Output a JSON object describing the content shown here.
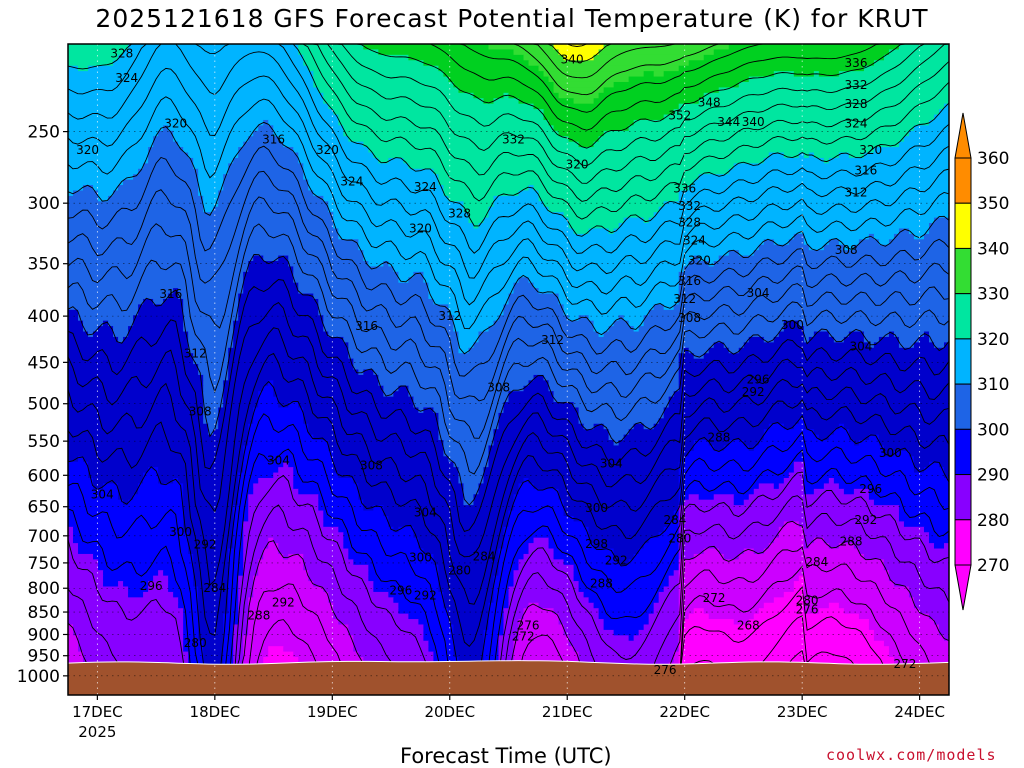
{
  "page": {
    "title": "2025121618 GFS Forecast Potential Temperature (K) for KRUT",
    "credit": "coolwx.com/models"
  },
  "chart_data": {
    "type": "heatmap",
    "title": "2025121618 GFS Forecast Potential Temperature (K) for KRUT",
    "xlabel": "Forecast Time (UTC)",
    "ylabel": "",
    "y_scale": "log",
    "y_inverted": true,
    "ylim": [
      1050,
      200
    ],
    "y_ticks": [
      250,
      300,
      350,
      400,
      450,
      500,
      550,
      600,
      650,
      700,
      750,
      800,
      850,
      900,
      950,
      1000
    ],
    "x_ticks": [
      {
        "label": "17DEC",
        "sub": "2025",
        "hours_from_start": 6
      },
      {
        "label": "18DEC",
        "sub": "",
        "hours_from_start": 30
      },
      {
        "label": "19DEC",
        "sub": "",
        "hours_from_start": 54
      },
      {
        "label": "20DEC",
        "sub": "",
        "hours_from_start": 78
      },
      {
        "label": "21DEC",
        "sub": "",
        "hours_from_start": 102
      },
      {
        "label": "22DEC",
        "sub": "",
        "hours_from_start": 126
      },
      {
        "label": "23DEC",
        "sub": "",
        "hours_from_start": 150
      },
      {
        "label": "24DEC",
        "sub": "",
        "hours_from_start": 174
      }
    ],
    "xlim_hours": [
      0,
      180
    ],
    "grid": true,
    "colorbar": {
      "levels": [
        270,
        280,
        290,
        300,
        310,
        320,
        330,
        340,
        350,
        360
      ],
      "colors": [
        "#ff00ff",
        "#cc00ff",
        "#8800ff",
        "#0000ff",
        "#0000cc",
        "#1e64e6",
        "#00b4ff",
        "#00e6a0",
        "#00d020",
        "#33dd33",
        "#ffff00",
        "#ffb400",
        "#ff8c00"
      ],
      "ends": [
        "triangle-bottom",
        "triangle-top"
      ]
    },
    "terrain_color": "#a0522d",
    "contour_labels": [
      {
        "text": "328",
        "hours": 11,
        "p": 205
      },
      {
        "text": "324",
        "hours": 12,
        "p": 218
      },
      {
        "text": "320",
        "hours": 4,
        "p": 262
      },
      {
        "text": "320",
        "hours": 22,
        "p": 245
      },
      {
        "text": "316",
        "hours": 42,
        "p": 255
      },
      {
        "text": "320",
        "hours": 53,
        "p": 262
      },
      {
        "text": "324",
        "hours": 58,
        "p": 284
      },
      {
        "text": "324",
        "hours": 73,
        "p": 288
      },
      {
        "text": "320",
        "hours": 72,
        "p": 320
      },
      {
        "text": "328",
        "hours": 80,
        "p": 308
      },
      {
        "text": "332",
        "hours": 91,
        "p": 255
      },
      {
        "text": "340",
        "hours": 103,
        "p": 208
      },
      {
        "text": "320",
        "hours": 104,
        "p": 272
      },
      {
        "text": "352",
        "hours": 125,
        "p": 240
      },
      {
        "text": "348",
        "hours": 131,
        "p": 232
      },
      {
        "text": "344",
        "hours": 135,
        "p": 244
      },
      {
        "text": "340",
        "hours": 140,
        "p": 244
      },
      {
        "text": "336",
        "hours": 161,
        "p": 210
      },
      {
        "text": "332",
        "hours": 161,
        "p": 222
      },
      {
        "text": "328",
        "hours": 161,
        "p": 233
      },
      {
        "text": "324",
        "hours": 161,
        "p": 245
      },
      {
        "text": "320",
        "hours": 164,
        "p": 262
      },
      {
        "text": "316",
        "hours": 163,
        "p": 276
      },
      {
        "text": "336",
        "hours": 126,
        "p": 289
      },
      {
        "text": "332",
        "hours": 127,
        "p": 302
      },
      {
        "text": "328",
        "hours": 127,
        "p": 315
      },
      {
        "text": "324",
        "hours": 128,
        "p": 330
      },
      {
        "text": "320",
        "hours": 129,
        "p": 347
      },
      {
        "text": "316",
        "hours": 127,
        "p": 366
      },
      {
        "text": "312",
        "hours": 126,
        "p": 383
      },
      {
        "text": "308",
        "hours": 127,
        "p": 402
      },
      {
        "text": "312",
        "hours": 161,
        "p": 292
      },
      {
        "text": "308",
        "hours": 159,
        "p": 338
      },
      {
        "text": "304",
        "hours": 141,
        "p": 377
      },
      {
        "text": "300",
        "hours": 148,
        "p": 409
      },
      {
        "text": "304",
        "hours": 162,
        "p": 432
      },
      {
        "text": "296",
        "hours": 141,
        "p": 470
      },
      {
        "text": "292",
        "hours": 140,
        "p": 485
      },
      {
        "text": "300",
        "hours": 168,
        "p": 567
      },
      {
        "text": "296",
        "hours": 164,
        "p": 621
      },
      {
        "text": "292",
        "hours": 163,
        "p": 672
      },
      {
        "text": "288",
        "hours": 160,
        "p": 710
      },
      {
        "text": "284",
        "hours": 153,
        "p": 748
      },
      {
        "text": "280",
        "hours": 151,
        "p": 825
      },
      {
        "text": "276",
        "hours": 151,
        "p": 845
      },
      {
        "text": "272",
        "hours": 171,
        "p": 970
      },
      {
        "text": "316",
        "hours": 21,
        "p": 378
      },
      {
        "text": "312",
        "hours": 26,
        "p": 440
      },
      {
        "text": "308",
        "hours": 27,
        "p": 510
      },
      {
        "text": "304",
        "hours": 7,
        "p": 630
      },
      {
        "text": "300",
        "hours": 23,
        "p": 693
      },
      {
        "text": "292",
        "hours": 28,
        "p": 716
      },
      {
        "text": "296",
        "hours": 17,
        "p": 795
      },
      {
        "text": "284",
        "hours": 30,
        "p": 800
      },
      {
        "text": "292",
        "hours": 44,
        "p": 830
      },
      {
        "text": "288",
        "hours": 39,
        "p": 858
      },
      {
        "text": "280",
        "hours": 26,
        "p": 920
      },
      {
        "text": "316",
        "hours": 61,
        "p": 410
      },
      {
        "text": "312",
        "hours": 78,
        "p": 400
      },
      {
        "text": "308",
        "hours": 88,
        "p": 480
      },
      {
        "text": "312",
        "hours": 99,
        "p": 425
      },
      {
        "text": "304",
        "hours": 43,
        "p": 578
      },
      {
        "text": "308",
        "hours": 62,
        "p": 585
      },
      {
        "text": "304",
        "hours": 73,
        "p": 660
      },
      {
        "text": "300",
        "hours": 72,
        "p": 740
      },
      {
        "text": "304",
        "hours": 111,
        "p": 582
      },
      {
        "text": "300",
        "hours": 108,
        "p": 652
      },
      {
        "text": "298",
        "hours": 108,
        "p": 715
      },
      {
        "text": "292",
        "hours": 112,
        "p": 745
      },
      {
        "text": "288",
        "hours": 109,
        "p": 790
      },
      {
        "text": "284",
        "hours": 85,
        "p": 738
      },
      {
        "text": "280",
        "hours": 80,
        "p": 765
      },
      {
        "text": "296",
        "hours": 68,
        "p": 805
      },
      {
        "text": "292",
        "hours": 73,
        "p": 815
      },
      {
        "text": "276",
        "hours": 94,
        "p": 880
      },
      {
        "text": "272",
        "hours": 93,
        "p": 905
      },
      {
        "text": "288",
        "hours": 133,
        "p": 545
      },
      {
        "text": "284",
        "hours": 124,
        "p": 672
      },
      {
        "text": "280",
        "hours": 125,
        "p": 705
      },
      {
        "text": "272",
        "hours": 132,
        "p": 820
      },
      {
        "text": "268",
        "hours": 139,
        "p": 880
      },
      {
        "text": "276",
        "hours": 122,
        "p": 985
      }
    ]
  }
}
